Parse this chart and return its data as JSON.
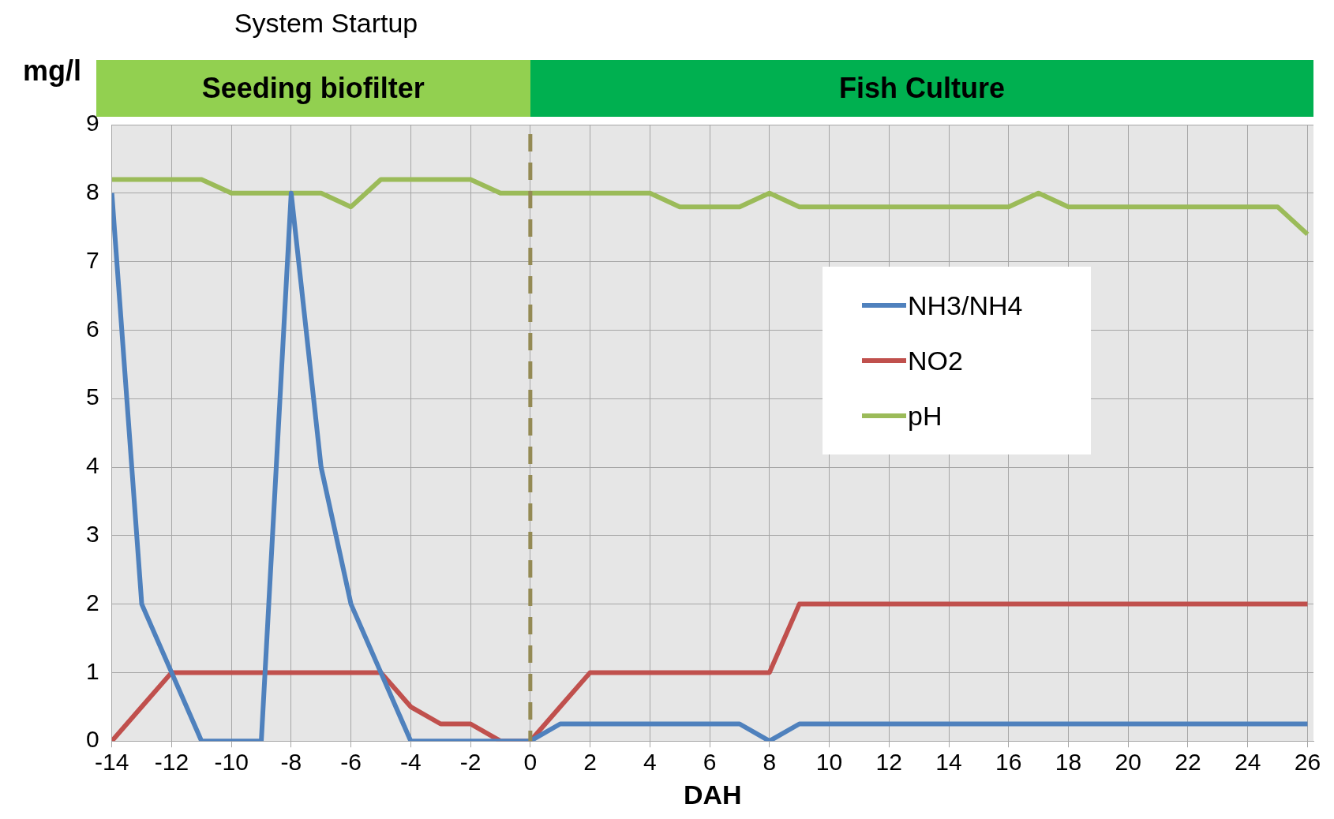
{
  "chart_data": {
    "type": "line",
    "xlabel": "DAH",
    "ylabel": "mg/l",
    "x": [
      -14,
      -13,
      -12,
      -11,
      -10,
      -9,
      -8,
      -7,
      -6,
      -5,
      -4,
      -3,
      -2,
      -1,
      0,
      1,
      2,
      3,
      4,
      5,
      6,
      7,
      8,
      9,
      10,
      11,
      12,
      13,
      14,
      15,
      16,
      17,
      18,
      19,
      20,
      21,
      22,
      23,
      24,
      25,
      26
    ],
    "series": [
      {
        "name": "NH3/NH4",
        "color": "#4f81bd",
        "values": [
          8,
          2,
          1,
          0,
          0,
          0,
          8,
          4,
          2,
          1,
          0,
          0,
          0,
          0,
          0,
          0.25,
          0.25,
          0.25,
          0.25,
          0.25,
          0.25,
          0.25,
          0,
          0.25,
          0.25,
          0.25,
          0.25,
          0.25,
          0.25,
          0.25,
          0.25,
          0.25,
          0.25,
          0.25,
          0.25,
          0.25,
          0.25,
          0.25,
          0.25,
          0.25,
          0.25
        ]
      },
      {
        "name": "NO2",
        "color": "#c0504d",
        "values": [
          0,
          0.5,
          1,
          1,
          1,
          1,
          1,
          1,
          1,
          1,
          0.5,
          0.25,
          0.25,
          0,
          0,
          0.5,
          1,
          1,
          1,
          1,
          1,
          1,
          1,
          2,
          2,
          2,
          2,
          2,
          2,
          2,
          2,
          2,
          2,
          2,
          2,
          2,
          2,
          2,
          2,
          2,
          2
        ]
      },
      {
        "name": "pH",
        "color": "#9bbb59",
        "values": [
          8.2,
          8.2,
          8.2,
          8.2,
          8,
          8,
          8,
          8,
          7.8,
          8.2,
          8.2,
          8.2,
          8.2,
          8,
          8,
          8,
          8,
          8,
          8,
          7.8,
          7.8,
          7.8,
          8,
          7.8,
          7.8,
          7.8,
          7.8,
          7.8,
          7.8,
          7.8,
          7.8,
          8,
          7.8,
          7.8,
          7.8,
          7.8,
          7.8,
          7.8,
          7.8,
          7.8,
          7.4
        ]
      }
    ],
    "xlim": [
      -14,
      26.2
    ],
    "xticks": [
      -14,
      -12,
      -10,
      -8,
      -6,
      -4,
      -2,
      0,
      2,
      4,
      6,
      8,
      10,
      12,
      14,
      16,
      18,
      20,
      22,
      24,
      26
    ],
    "ylim": [
      0,
      9
    ],
    "yticks": [
      0,
      1,
      2,
      3,
      4,
      5,
      6,
      7,
      8,
      9
    ],
    "grid": true,
    "legend": "right",
    "marker": "none",
    "line_style": "solid",
    "ref_lines": [
      {
        "axis": "x",
        "value": 0,
        "color": "#948a54",
        "line_style": "dashed"
      }
    ],
    "annotations": [
      "System Startup",
      "Seeding biofilter",
      "Fish Culture"
    ]
  }
}
